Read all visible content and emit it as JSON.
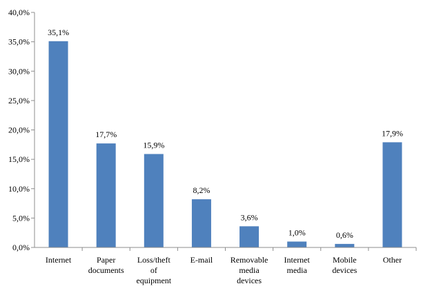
{
  "chart_data": {
    "type": "bar",
    "title": "",
    "xlabel": "",
    "ylabel": "",
    "ylim": [
      0,
      40
    ],
    "y_ticks": [
      "0,0%",
      "5,0%",
      "10,0%",
      "15,0%",
      "20,0%",
      "25,0%",
      "30,0%",
      "35,0%",
      "40,0%"
    ],
    "grid": false,
    "legend": "none",
    "bar_color": "#4f81bd",
    "categories": [
      [
        "Internet"
      ],
      [
        "Paper",
        "documents"
      ],
      [
        "Loss/theft",
        "of",
        "equipment"
      ],
      [
        "E-mail"
      ],
      [
        "Removable",
        "media",
        "devices"
      ],
      [
        "Internet",
        "media"
      ],
      [
        "Mobile",
        "devices"
      ],
      [
        "Other"
      ]
    ],
    "values": [
      35.1,
      17.7,
      15.9,
      8.2,
      3.6,
      1.0,
      0.6,
      17.9
    ],
    "data_labels": [
      "35,1%",
      "17,7%",
      "15,9%",
      "8,2%",
      "3,6%",
      "1,0%",
      "0,6%",
      "17,9%"
    ]
  }
}
